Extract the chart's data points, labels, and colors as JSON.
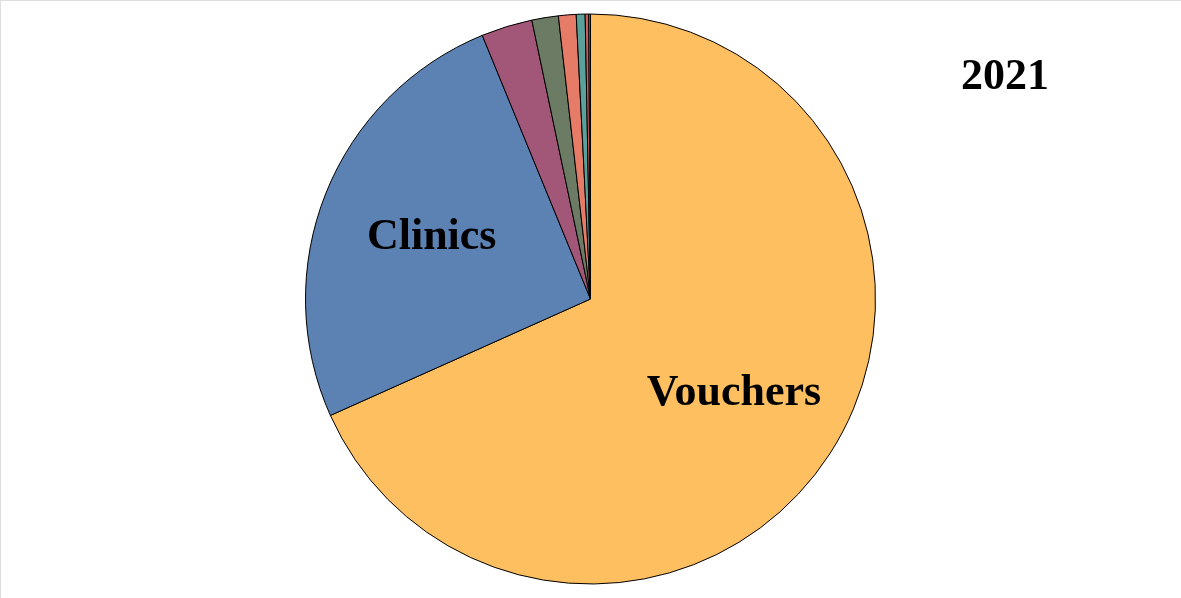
{
  "chart_data": {
    "type": "pie",
    "title": "2021",
    "categories": [
      "Vouchers",
      "Clinics",
      null,
      null,
      null,
      null,
      null,
      null
    ],
    "values": [
      68.3,
      25.5,
      2.9,
      1.5,
      1.0,
      0.5,
      0.2,
      0.1
    ],
    "colors": [
      "#fdbf5f",
      "#5c82b4",
      "#a35778",
      "#6c7c64",
      "#e67c68",
      "#5aa09b",
      "#d05a5a",
      "#468c64"
    ],
    "legend": false
  }
}
